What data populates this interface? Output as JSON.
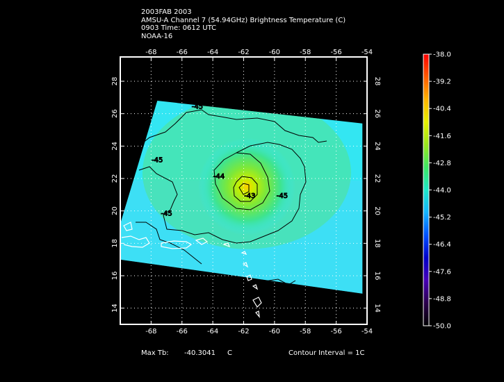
{
  "header": {
    "line1": "2003FAB 2003",
    "line2": "AMSU-A Channel 7 (54.94GHz) Brightness Temperature (C)",
    "line3": "0903 Time: 0612 UTC",
    "line4": "NOAA-16"
  },
  "map": {
    "lon_range": [
      -70,
      -54
    ],
    "lat_range": [
      13,
      29.5
    ],
    "lon_ticks": [
      -68,
      -66,
      -64,
      -62,
      -60,
      -58,
      -56,
      -54
    ],
    "lat_ticks": [
      14,
      16,
      18,
      20,
      22,
      24,
      26,
      28
    ],
    "lon_tick_labels": [
      "-68",
      "-66",
      "-64",
      "-62",
      "-60",
      "-58",
      "-56",
      "-54"
    ],
    "lat_tick_labels": [
      "14",
      "16",
      "18",
      "20",
      "22",
      "24",
      "26",
      "28"
    ],
    "grid": true,
    "swath_corners": [
      [
        -67.6,
        26.8
      ],
      [
        -54.3,
        25.4
      ],
      [
        -54.3,
        14.9
      ],
      [
        -70.0,
        17.0
      ],
      [
        -70.0,
        19.2
      ]
    ],
    "warm_core_center": [
      -61.8,
      21.5
    ],
    "contour_labels": [
      {
        "text": "-45",
        "lon": -65.0,
        "lat": 26.3
      },
      {
        "text": "-45",
        "lon": -67.6,
        "lat": 23.0
      },
      {
        "text": "-45",
        "lon": -67.0,
        "lat": 19.7
      },
      {
        "text": "-45",
        "lon": -59.5,
        "lat": 20.8
      },
      {
        "text": "-44",
        "lon": -63.6,
        "lat": 22.0
      },
      {
        "text": "-43",
        "lon": -61.6,
        "lat": 20.8
      }
    ],
    "colors": {
      "swath_base": "#33e6f2",
      "grid": "#ffffff",
      "contour": "#000000",
      "coast": "#ffffff"
    }
  },
  "colorbar": {
    "ticks": [
      "-38.0",
      "-39.2",
      "-40.4",
      "-41.6",
      "-42.8",
      "-44.0",
      "-45.2",
      "-46.4",
      "-47.6",
      "-48.8",
      "-50.0"
    ],
    "stops": [
      "#ff0000",
      "#ff5a00",
      "#ffb400",
      "#e6f000",
      "#9ae61e",
      "#3ce664",
      "#1ee6c8",
      "#14b4ff",
      "#0050ff",
      "#0000c8",
      "#4600b4",
      "#2a004a",
      "#000000"
    ]
  },
  "footer": {
    "max_tb_label": "Max Tb:",
    "max_tb_value": "-40.3041",
    "max_tb_unit": "C",
    "contour_interval": "Contour Interval = 1C"
  }
}
